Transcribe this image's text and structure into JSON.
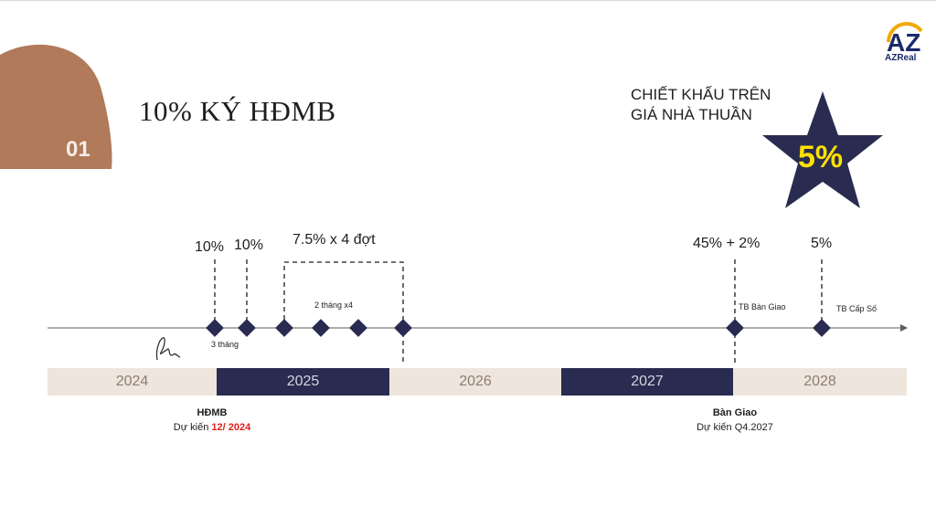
{
  "slide": {
    "step_number": "01",
    "title": "10% KÝ HĐMB"
  },
  "logo": {
    "brand": "AZReal",
    "mark": "AZ"
  },
  "discount": {
    "label_line1": "CHIẾT KHẤU TRÊN",
    "label_line2": "GIÁ NHÀ THUẦN",
    "value": "5%"
  },
  "milestones": {
    "first_pct": "10%",
    "second_pct": "10%",
    "installments": "7.5% x 4 đợt",
    "installment_interval": "2 tháng x4",
    "gap_label": "3 tháng",
    "handover_pct": "45% + 2%",
    "handover_notice": "TB Bàn Giao",
    "final_pct": "5%",
    "final_notice": "TB Cấp Số"
  },
  "years": [
    "2024",
    "2025",
    "2026",
    "2027",
    "2028"
  ],
  "notes": {
    "contract_head": "HĐMB",
    "contract_prefix": "Dự kiến ",
    "contract_date": "12/ 2024",
    "handover_head": "Bàn Giao",
    "handover_date": "Dự kiến Q4.2027"
  },
  "colors": {
    "navy": "#292c50",
    "sand": "#efe5dc",
    "copper": "#b07a5b",
    "star_text": "#ffe100",
    "red": "#e0201b"
  }
}
